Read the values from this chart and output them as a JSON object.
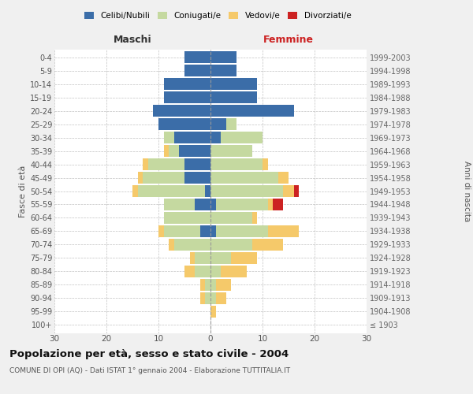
{
  "age_groups": [
    "100+",
    "95-99",
    "90-94",
    "85-89",
    "80-84",
    "75-79",
    "70-74",
    "65-69",
    "60-64",
    "55-59",
    "50-54",
    "45-49",
    "40-44",
    "35-39",
    "30-34",
    "25-29",
    "20-24",
    "15-19",
    "10-14",
    "5-9",
    "0-4"
  ],
  "birth_years": [
    "≤ 1903",
    "1904-1908",
    "1909-1913",
    "1914-1918",
    "1919-1923",
    "1924-1928",
    "1929-1933",
    "1934-1938",
    "1939-1943",
    "1944-1948",
    "1949-1953",
    "1954-1958",
    "1959-1963",
    "1964-1968",
    "1969-1973",
    "1974-1978",
    "1979-1983",
    "1984-1988",
    "1989-1993",
    "1994-1998",
    "1999-2003"
  ],
  "male": {
    "celibi": [
      0,
      0,
      0,
      0,
      0,
      0,
      0,
      2,
      0,
      3,
      1,
      5,
      5,
      6,
      7,
      10,
      11,
      9,
      9,
      5,
      5
    ],
    "coniugati": [
      0,
      0,
      1,
      1,
      3,
      3,
      7,
      7,
      9,
      6,
      13,
      8,
      7,
      2,
      2,
      0,
      0,
      0,
      0,
      0,
      0
    ],
    "vedovi": [
      0,
      0,
      1,
      1,
      2,
      1,
      1,
      1,
      0,
      0,
      1,
      1,
      1,
      1,
      0,
      0,
      0,
      0,
      0,
      0,
      0
    ],
    "divorziati": [
      0,
      0,
      0,
      0,
      0,
      0,
      0,
      0,
      0,
      0,
      0,
      0,
      0,
      0,
      0,
      0,
      0,
      0,
      0,
      0,
      0
    ]
  },
  "female": {
    "nubili": [
      0,
      0,
      0,
      0,
      0,
      0,
      0,
      1,
      0,
      1,
      0,
      0,
      0,
      0,
      2,
      3,
      16,
      9,
      9,
      5,
      5
    ],
    "coniugate": [
      0,
      0,
      1,
      1,
      2,
      4,
      8,
      10,
      8,
      10,
      14,
      13,
      10,
      8,
      8,
      2,
      0,
      0,
      0,
      0,
      0
    ],
    "vedove": [
      0,
      1,
      2,
      3,
      5,
      5,
      6,
      6,
      1,
      1,
      2,
      2,
      1,
      0,
      0,
      0,
      0,
      0,
      0,
      0,
      0
    ],
    "divorziate": [
      0,
      0,
      0,
      0,
      0,
      0,
      0,
      0,
      0,
      2,
      1,
      0,
      0,
      0,
      0,
      0,
      0,
      0,
      0,
      0,
      0
    ]
  },
  "colors": {
    "celibi": "#3b6da8",
    "coniugati": "#c5d9a0",
    "vedovi": "#f5c96a",
    "divorziati": "#cc2222"
  },
  "title": "Popolazione per età, sesso e stato civile - 2004",
  "subtitle": "COMUNE DI OPI (AQ) - Dati ISTAT 1° gennaio 2004 - Elaborazione TUTTITALIA.IT",
  "xlim": 30,
  "bg_color": "#f0f0f0",
  "plot_bg": "#ffffff"
}
